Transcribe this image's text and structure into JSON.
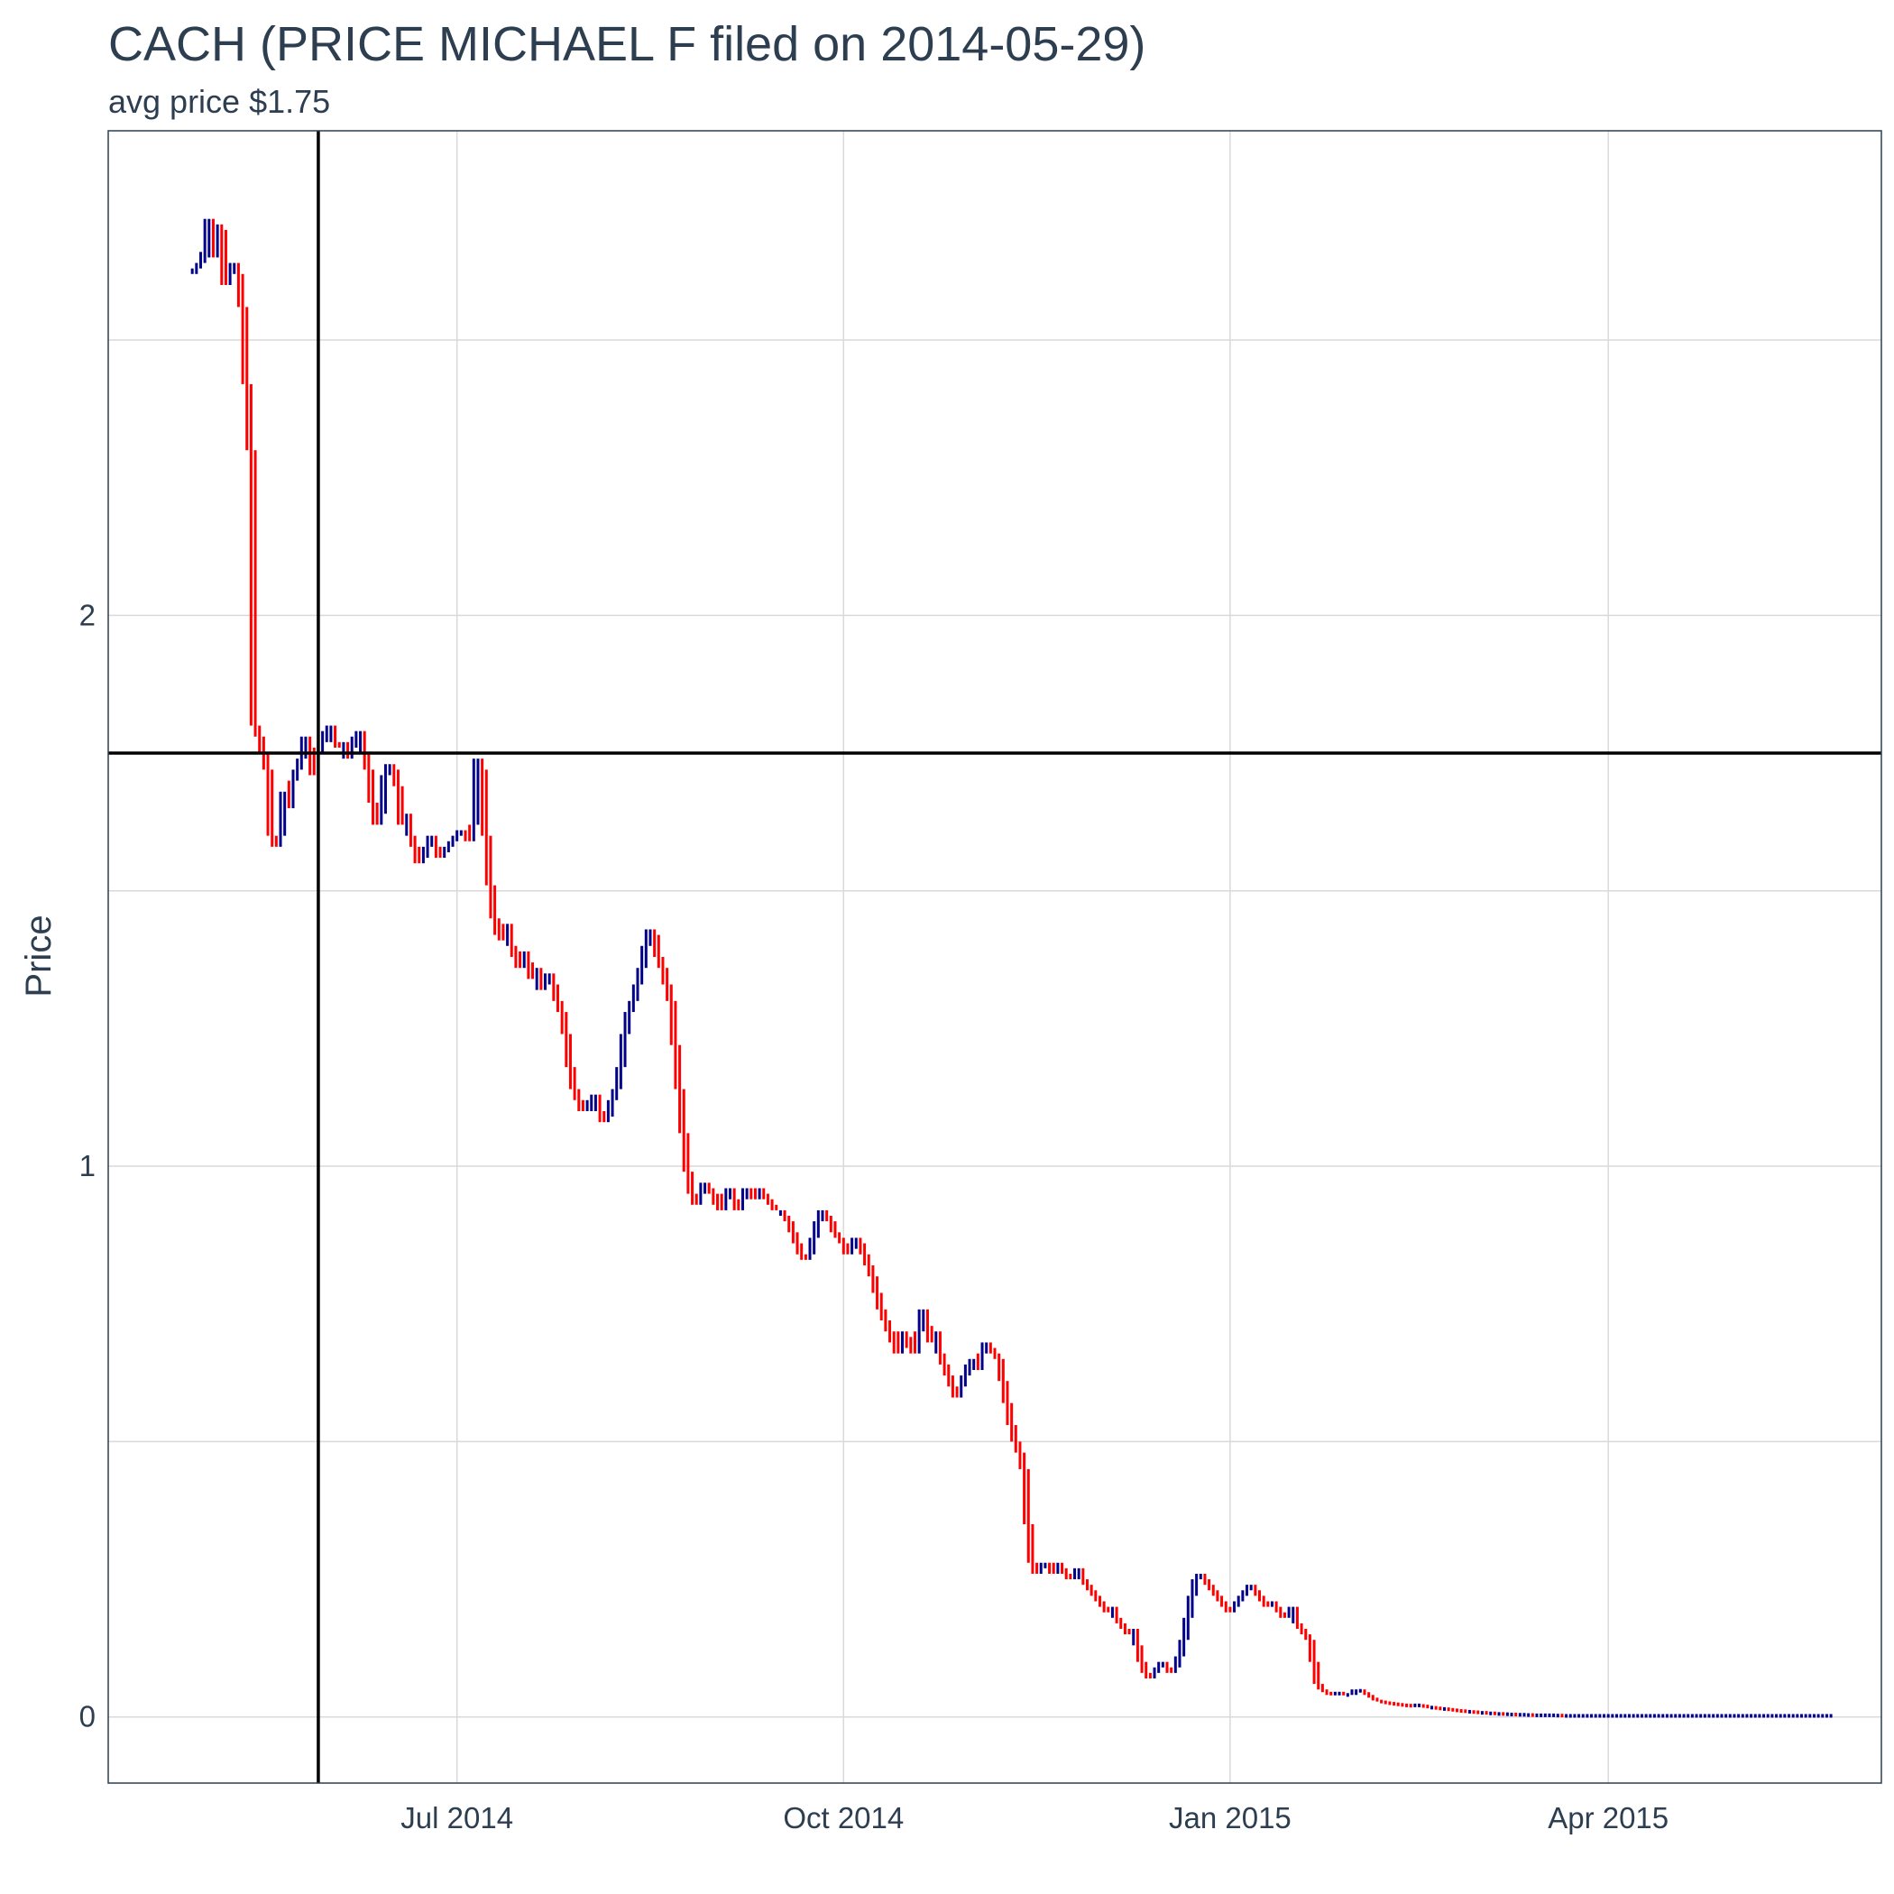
{
  "chart_data": {
    "type": "candlestick",
    "title": "CACH (PRICE MICHAEL F filed on 2014-05-29)",
    "subtitle": "avg price $1.75",
    "xlabel": "",
    "ylabel": "Price",
    "xlim": [
      "2014-04-09",
      "2015-06-05"
    ],
    "ylim": [
      -0.12,
      2.88
    ],
    "grid": true,
    "y_ticks": [
      0,
      1,
      2
    ],
    "y_ticks_unlabeled": [
      0.5,
      1.5,
      2.5
    ],
    "x_ticks": [
      {
        "date": "2014-07-01",
        "label": "Jul 2014"
      },
      {
        "date": "2014-10-01",
        "label": "Oct 2014"
      },
      {
        "date": "2015-01-01",
        "label": "Jan 2015"
      },
      {
        "date": "2015-04-01",
        "label": "Apr 2015"
      }
    ],
    "reference_lines": {
      "vertical_date": "2014-05-29",
      "horizontal_value": 1.75
    },
    "colors": {
      "up": "#00008b",
      "down": "#ff0000",
      "reference": "#000000",
      "grid": "#d9d9d9",
      "panel_border": "#2c3e50"
    },
    "series": [
      {
        "start": "2014-04-29",
        "end": "2014-06-27",
        "values": [
          2.62,
          2.63,
          2.64,
          2.66,
          2.72,
          2.65,
          2.71,
          2.7,
          2.6,
          2.62,
          2.64,
          2.62,
          2.56,
          2.42,
          2.3,
          1.8,
          1.78,
          1.75,
          1.72,
          1.6,
          1.58,
          1.6,
          1.68,
          1.65,
          1.7,
          1.72,
          1.74,
          1.78,
          1.76,
          1.71,
          1.75,
          1.77,
          1.79,
          1.8,
          1.77,
          1.76,
          1.77,
          1.74,
          1.76,
          1.78,
          1.79,
          1.75,
          1.72,
          1.66,
          1.62,
          1.64,
          1.71,
          1.73,
          1.72,
          1.69,
          1.62,
          1.64,
          1.6,
          1.58,
          1.55,
          1.56,
          1.58,
          1.6,
          1.58,
          1.56
        ]
      },
      {
        "start": "2014-06-28",
        "end": "2014-09-25",
        "values": [
          1.57,
          1.58,
          1.59,
          1.6,
          1.61,
          1.6,
          1.59,
          1.62,
          1.74,
          1.72,
          1.6,
          1.51,
          1.45,
          1.42,
          1.41,
          1.44,
          1.4,
          1.38,
          1.36,
          1.39,
          1.37,
          1.34,
          1.36,
          1.32,
          1.34,
          1.35,
          1.33,
          1.3,
          1.28,
          1.24,
          1.18,
          1.14,
          1.12,
          1.1,
          1.1,
          1.12,
          1.13,
          1.1,
          1.08,
          1.09,
          1.12,
          1.14,
          1.18,
          1.24,
          1.28,
          1.3,
          1.33,
          1.36,
          1.4,
          1.43,
          1.42,
          1.38,
          1.36,
          1.33,
          1.3,
          1.22,
          1.14,
          1.06,
          0.99,
          0.95,
          0.93,
          0.95,
          0.97,
          0.96,
          0.95,
          0.93,
          0.92,
          0.95,
          0.96,
          0.94,
          0.92,
          0.94,
          0.96,
          0.95,
          0.94,
          0.96,
          0.95,
          0.94,
          0.93,
          0.92,
          0.92,
          0.91,
          0.9,
          0.88,
          0.86,
          0.84,
          0.83,
          0.84,
          0.87,
          0.9
        ]
      },
      {
        "start": "2014-09-26",
        "end": "2014-12-24",
        "values": [
          0.92,
          0.91,
          0.9,
          0.88,
          0.87,
          0.86,
          0.84,
          0.85,
          0.87,
          0.86,
          0.84,
          0.82,
          0.8,
          0.77,
          0.74,
          0.72,
          0.7,
          0.68,
          0.66,
          0.7,
          0.69,
          0.67,
          0.66,
          0.7,
          0.74,
          0.71,
          0.68,
          0.7,
          0.66,
          0.64,
          0.62,
          0.6,
          0.58,
          0.6,
          0.62,
          0.64,
          0.65,
          0.63,
          0.66,
          0.68,
          0.67,
          0.66,
          0.65,
          0.61,
          0.57,
          0.53,
          0.5,
          0.48,
          0.45,
          0.35,
          0.28,
          0.26,
          0.27,
          0.28,
          0.27,
          0.26,
          0.28,
          0.27,
          0.26,
          0.25,
          0.26,
          0.27,
          0.25,
          0.24,
          0.23,
          0.22,
          0.21,
          0.2,
          0.19,
          0.2,
          0.18,
          0.17,
          0.16,
          0.15,
          0.16,
          0.13,
          0.1,
          0.08,
          0.07,
          0.08,
          0.09,
          0.1,
          0.09,
          0.08,
          0.09,
          0.11,
          0.14,
          0.18,
          0.22,
          0.25
        ]
      },
      {
        "start": "2014-12-25",
        "end": "2015-03-24",
        "values": [
          0.26,
          0.25,
          0.24,
          0.23,
          0.22,
          0.21,
          0.2,
          0.19,
          0.2,
          0.21,
          0.22,
          0.23,
          0.24,
          0.23,
          0.22,
          0.21,
          0.2,
          0.21,
          0.2,
          0.19,
          0.18,
          0.19,
          0.2,
          0.17,
          0.16,
          0.15,
          0.14,
          0.1,
          0.06,
          0.05,
          0.045,
          0.04,
          0.04,
          0.045,
          0.04,
          0.04,
          0.04,
          0.05,
          0.05,
          0.045,
          0.04,
          0.035,
          0.03,
          0.028,
          0.026,
          0.025,
          0.024,
          0.023,
          0.022,
          0.021,
          0.02,
          0.02,
          0.022,
          0.02,
          0.018,
          0.018,
          0.016,
          0.015,
          0.015,
          0.014,
          0.013,
          0.012,
          0.011,
          0.01,
          0.01,
          0.009,
          0.008,
          0.008,
          0.007,
          0.007,
          0.006,
          0.006,
          0.005,
          0.005,
          0.005,
          0.004,
          0.004,
          0.004,
          0.004,
          0.003,
          0.003,
          0.003,
          0.003,
          0.003,
          0.003,
          0.003,
          0.002,
          0.002,
          0.002,
          0.002
        ]
      },
      {
        "start": "2015-03-25",
        "end": "2015-05-24",
        "values": [
          0.002,
          0.002,
          0.002,
          0.002,
          0.002,
          0.002,
          0.002,
          0.002,
          0.002,
          0.002,
          0.002,
          0.002,
          0.002,
          0.002,
          0.002,
          0.002,
          0.002,
          0.002,
          0.002,
          0.002,
          0.002,
          0.002,
          0.002,
          0.002,
          0.002,
          0.002,
          0.002,
          0.002,
          0.002,
          0.002,
          0.002,
          0.002,
          0.002,
          0.002,
          0.002,
          0.002,
          0.002,
          0.002,
          0.002,
          0.002,
          0.002,
          0.002,
          0.002,
          0.002,
          0.002,
          0.002,
          0.002,
          0.002,
          0.002,
          0.002,
          0.002,
          0.002,
          0.002,
          0.002,
          0.002,
          0.002,
          0.002,
          0.002,
          0.002,
          0.002,
          0.002
        ]
      }
    ]
  }
}
